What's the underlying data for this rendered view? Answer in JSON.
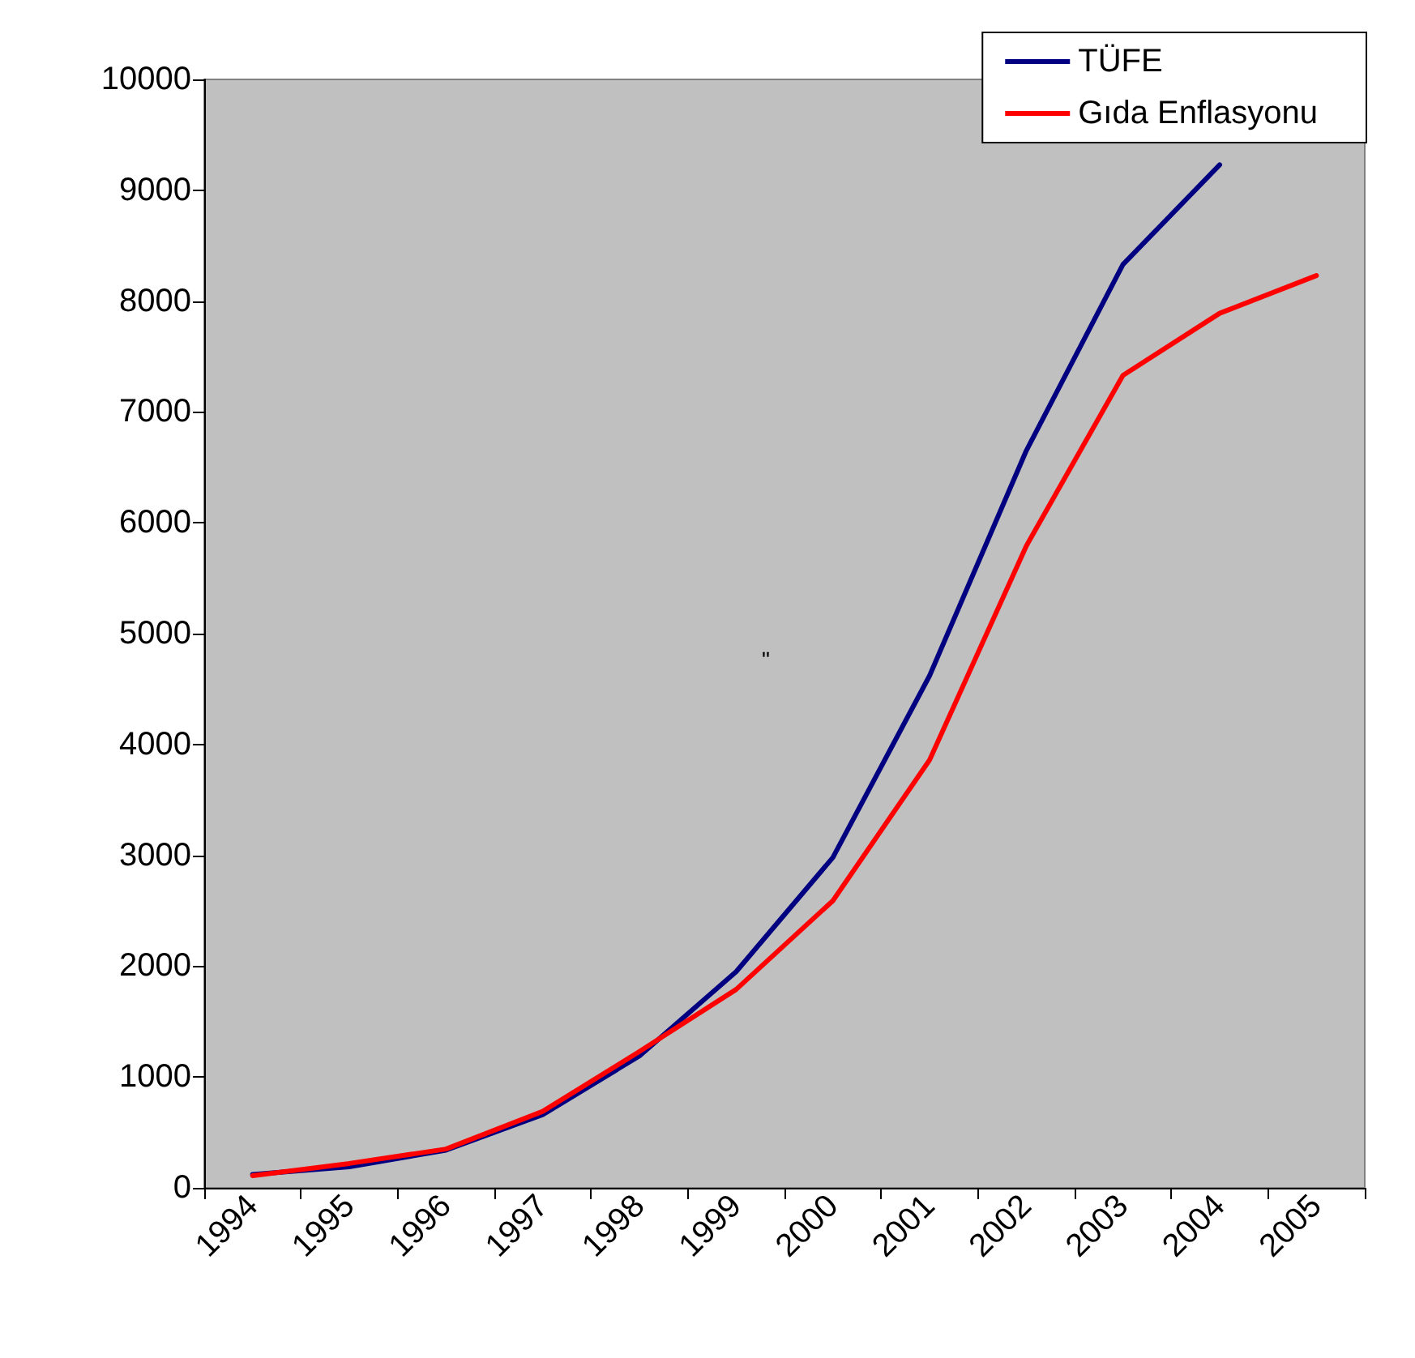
{
  "chart_data": {
    "type": "line",
    "categories": [
      "1994",
      "1995",
      "1996",
      "1997",
      "1998",
      "1999",
      "2000",
      "2001",
      "2002",
      "2003",
      "2004",
      "2005"
    ],
    "series": [
      {
        "name": "TÜFE",
        "color": "#000080",
        "values": [
          120,
          190,
          340,
          660,
          1190,
          1950,
          2980,
          4620,
          6650,
          8330,
          9230,
          null
        ]
      },
      {
        "name": "Gıda Enflasyonu",
        "color": "#ff0000",
        "values": [
          110,
          220,
          350,
          690,
          1230,
          1790,
          2590,
          3860,
          5790,
          7330,
          7890,
          8230
        ]
      }
    ],
    "ylim": [
      0,
      10000
    ],
    "yticks": [
      0,
      1000,
      2000,
      3000,
      4000,
      5000,
      6000,
      7000,
      8000,
      9000,
      10000
    ],
    "grid": false,
    "legend": "top right",
    "marker": "none",
    "line_style": "solid",
    "annotations": [
      "\""
    ]
  }
}
